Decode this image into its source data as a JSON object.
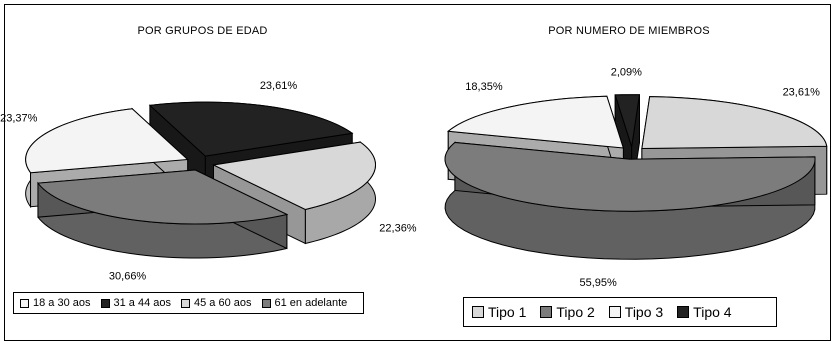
{
  "chart_data": [
    {
      "type": "pie",
      "title": "POR GRUPOS DE EDAD",
      "categories": [
        "18 a 30 aos",
        "31 a 44 aos",
        "45 a 60 aos",
        "61 en adelante"
      ],
      "values": [
        23.37,
        23.61,
        22.36,
        30.66
      ],
      "value_labels": [
        "23,37%",
        "23,61%",
        "22,36%",
        "30,66%"
      ],
      "colors": [
        "#f4f4f4",
        "#222222",
        "#d8d8d8",
        "#7c7c7c"
      ],
      "style": "3d-exploded",
      "legend": "bottom"
    },
    {
      "type": "pie",
      "title": "POR NUMERO DE MIEMBROS",
      "categories": [
        "Tipo 1",
        "Tipo 2",
        "Tipo 3",
        "Tipo 4"
      ],
      "values": [
        23.61,
        55.95,
        18.35,
        2.09
      ],
      "value_labels": [
        "23,61%",
        "55,95%",
        "18,35%",
        "2,09%"
      ],
      "colors": [
        "#d8d8d8",
        "#7c7c7c",
        "#f4f4f4",
        "#222222"
      ],
      "style": "3d-exploded",
      "legend": "bottom"
    }
  ]
}
